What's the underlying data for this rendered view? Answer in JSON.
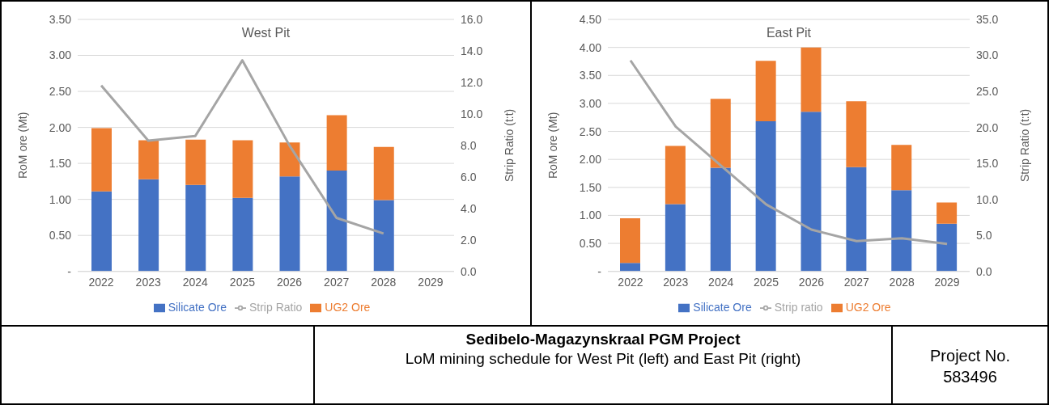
{
  "chart_data": [
    {
      "type": "bar",
      "title": "West Pit",
      "ylabel": "RoM ore (Mt)",
      "y2label": "Strip Ratio (t:t)",
      "categories": [
        "2022",
        "2023",
        "2024",
        "2025",
        "2026",
        "2027",
        "2028",
        "2029"
      ],
      "stacked": true,
      "grid": "y",
      "legend": "bottom",
      "marker": "none",
      "series": [
        {
          "name": "Silicate Ore",
          "color": "#4472c4",
          "values": [
            1.11,
            1.28,
            1.2,
            1.02,
            1.32,
            1.4,
            0.99,
            null
          ]
        },
        {
          "name": "UG2 Ore",
          "color": "#ed7d31",
          "values": [
            0.88,
            0.54,
            0.63,
            0.8,
            0.47,
            0.77,
            0.74,
            null
          ]
        },
        {
          "name": "Strip Ratio",
          "type": "line",
          "axis": "y2",
          "color": "#a5a5a5",
          "values": [
            11.8,
            8.3,
            8.6,
            13.4,
            8.0,
            3.4,
            2.4,
            null
          ]
        }
      ],
      "ylim": [
        0,
        3.5
      ],
      "yticks": [
        {
          "value": 0,
          "label": "-"
        },
        {
          "value": 0.5,
          "label": "0.50"
        },
        {
          "value": 1,
          "label": "1.00"
        },
        {
          "value": 1.5,
          "label": "1.50"
        },
        {
          "value": 2,
          "label": "2.00"
        },
        {
          "value": 2.5,
          "label": "2.50"
        },
        {
          "value": 3,
          "label": "3.00"
        },
        {
          "value": 3.5,
          "label": "3.50"
        }
      ],
      "y2lim": [
        0,
        16
      ],
      "y2ticks": [
        {
          "value": 0,
          "label": "0.0"
        },
        {
          "value": 2,
          "label": "2.0"
        },
        {
          "value": 4,
          "label": "4.0"
        },
        {
          "value": 6,
          "label": "6.0"
        },
        {
          "value": 8,
          "label": "8.0"
        },
        {
          "value": 10,
          "label": "10.0"
        },
        {
          "value": 12,
          "label": "12.0"
        },
        {
          "value": 14,
          "label": "14.0"
        },
        {
          "value": 16,
          "label": "16.0"
        }
      ]
    },
    {
      "type": "bar",
      "title": "East Pit",
      "ylabel": "RoM ore (Mt)",
      "y2label": "Strip Ratio (t:t)",
      "categories": [
        "2022",
        "2023",
        "2024",
        "2025",
        "2026",
        "2027",
        "2028",
        "2029"
      ],
      "stacked": true,
      "grid": "y",
      "legend": "bottom",
      "marker": "none",
      "series": [
        {
          "name": "Silicate Ore",
          "color": "#4472c4",
          "values": [
            0.15,
            1.2,
            1.85,
            2.68,
            2.85,
            1.86,
            1.45,
            0.85
          ]
        },
        {
          "name": "UG2 Ore",
          "color": "#ed7d31",
          "values": [
            0.8,
            1.04,
            1.23,
            1.08,
            1.15,
            1.18,
            0.81,
            0.38
          ]
        },
        {
          "name": "Strip ratio",
          "type": "line",
          "axis": "y2",
          "color": "#a5a5a5",
          "values": [
            29.3,
            20.1,
            14.7,
            9.3,
            5.8,
            4.2,
            4.6,
            3.8
          ]
        }
      ],
      "ylim": [
        0,
        4.5
      ],
      "yticks": [
        {
          "value": 0,
          "label": "-"
        },
        {
          "value": 0.5,
          "label": "0.50"
        },
        {
          "value": 1,
          "label": "1.00"
        },
        {
          "value": 1.5,
          "label": "1.50"
        },
        {
          "value": 2,
          "label": "2.00"
        },
        {
          "value": 2.5,
          "label": "2.50"
        },
        {
          "value": 3,
          "label": "3.00"
        },
        {
          "value": 3.5,
          "label": "3.50"
        },
        {
          "value": 4,
          "label": "4.00"
        },
        {
          "value": 4.5,
          "label": "4.50"
        }
      ],
      "y2lim": [
        0,
        35
      ],
      "y2ticks": [
        {
          "value": 0,
          "label": "0.0"
        },
        {
          "value": 5,
          "label": "5.0"
        },
        {
          "value": 10,
          "label": "10.0"
        },
        {
          "value": 15,
          "label": "15.0"
        },
        {
          "value": 20,
          "label": "20.0"
        },
        {
          "value": 25,
          "label": "25.0"
        },
        {
          "value": 30,
          "label": "30.0"
        },
        {
          "value": 35,
          "label": "35.0"
        }
      ]
    },
    {
      "type": "other",
      "annotations": [
        "Sedibelo-Magazynskraal PGM Project",
        "LoM mining schedule for West Pit (left) and East Pit (right)",
        "Project No. 583496"
      ]
    }
  ]
}
